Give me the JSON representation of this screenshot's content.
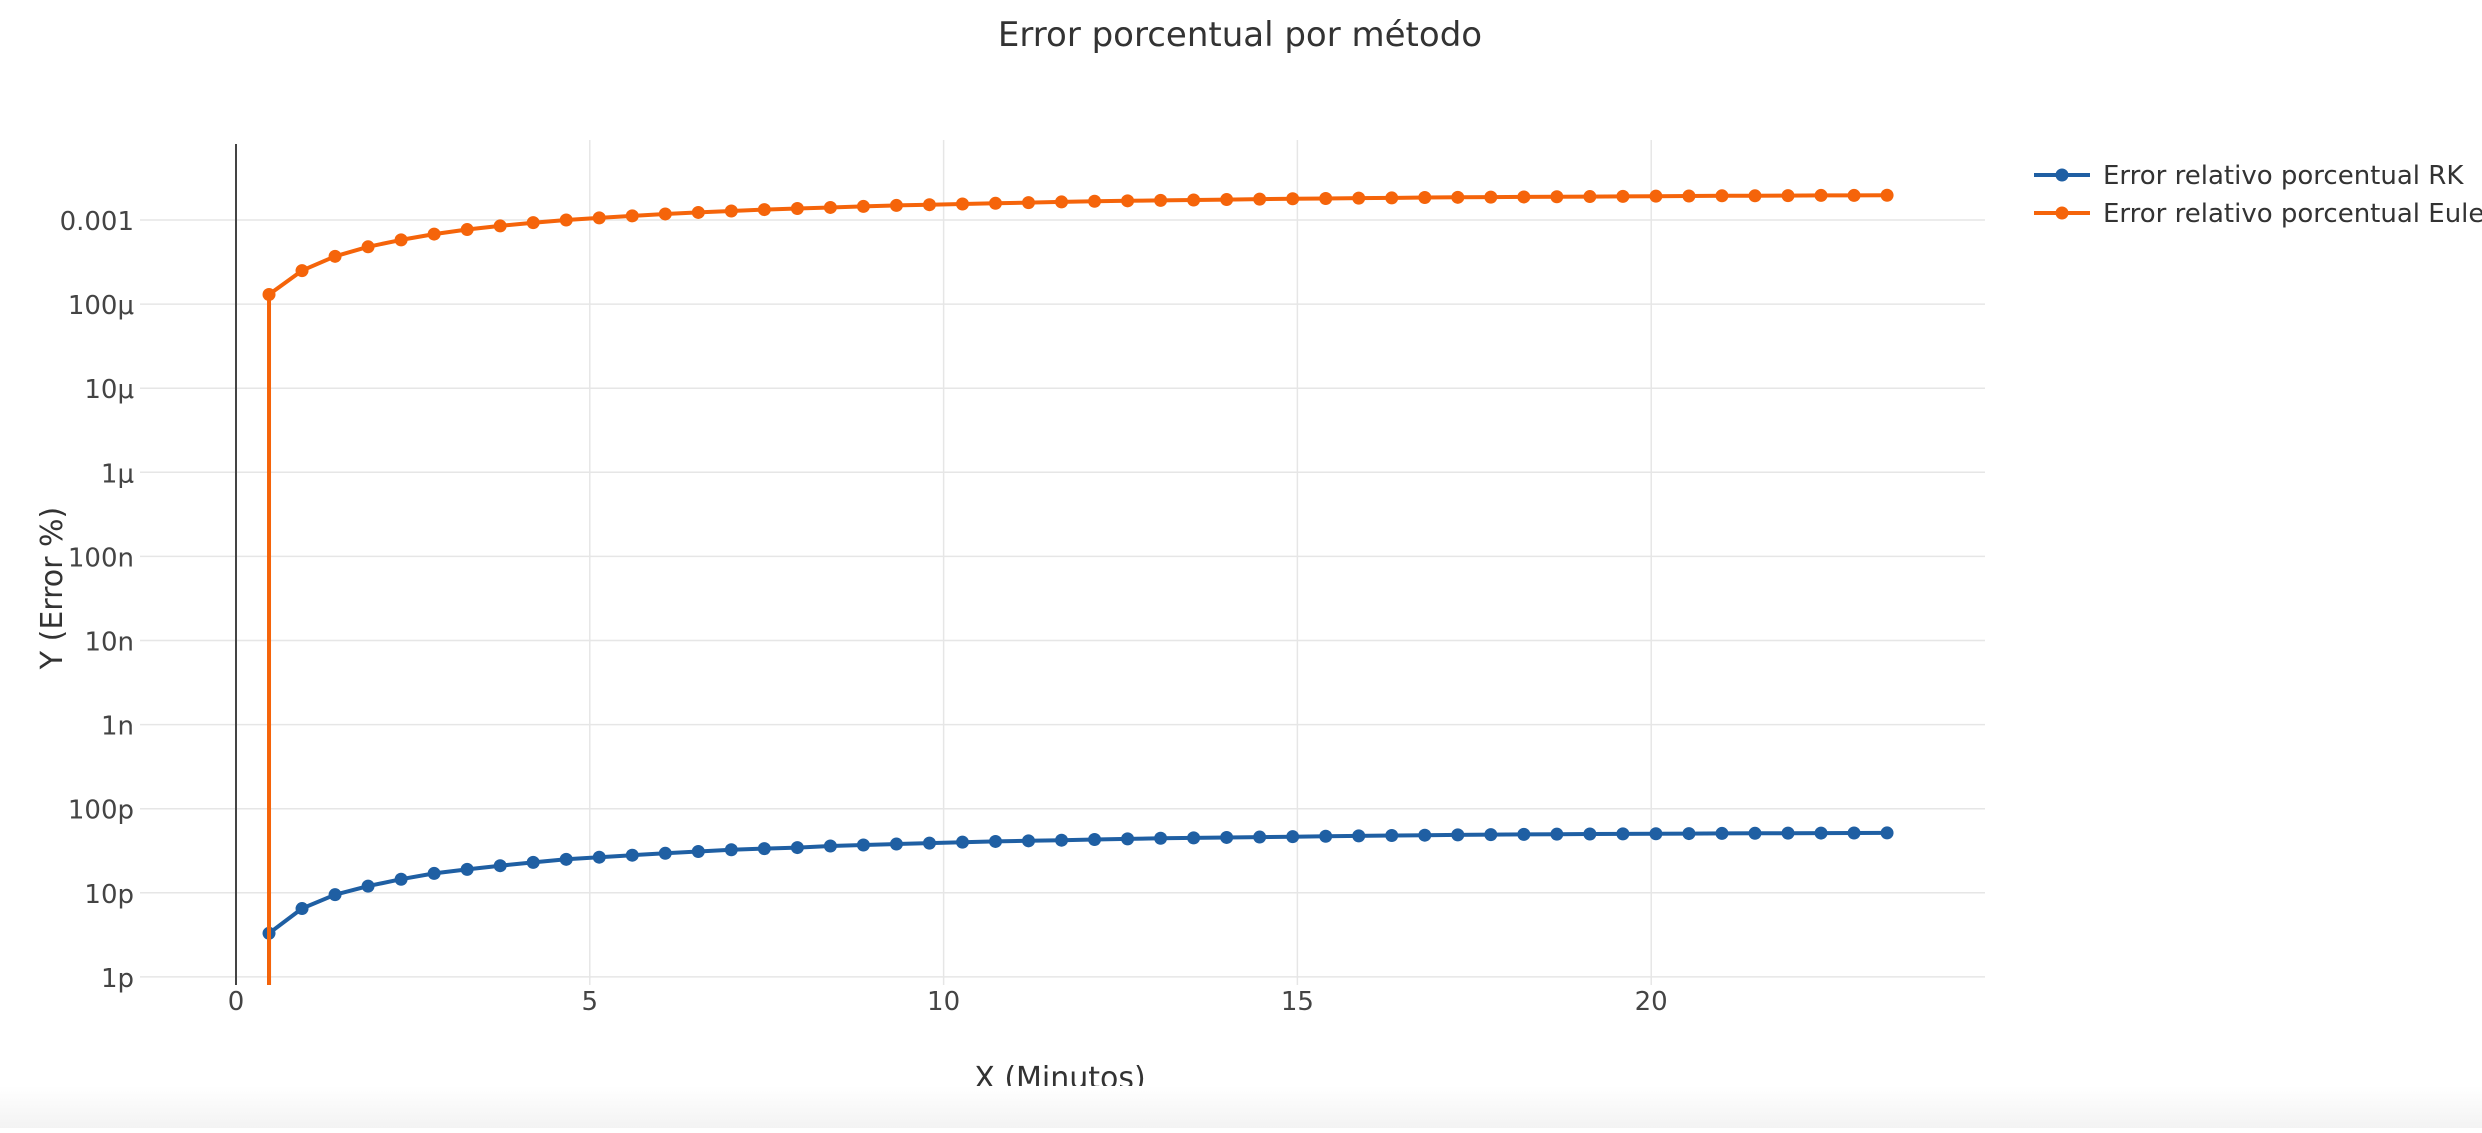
{
  "chart_data": {
    "type": "line",
    "title": "Error porcentual por método",
    "xlabel": "X (Minutos)",
    "ylabel": "Y (Error %)",
    "x_scale": "linear",
    "y_scale": "log",
    "xlim": [
      -1.0,
      24.8
    ],
    "ylim": [
      9e-13,
      0.008
    ],
    "x_ticks": [
      0,
      5,
      10,
      15,
      20
    ],
    "x_tick_labels": [
      "0",
      "5",
      "10",
      "15",
      "20"
    ],
    "y_ticks": [
      1e-12,
      1e-11,
      1e-10,
      1e-09,
      1e-08,
      1e-07,
      1e-06,
      1e-05,
      0.0001,
      0.001
    ],
    "y_tick_labels": [
      "1p",
      "10p",
      "100p",
      "1n",
      "10n",
      "100n",
      "1μ",
      "10μ",
      "100μ",
      "0.001"
    ],
    "grid": true,
    "legend_position": "top-right",
    "x": [
      0.46667,
      0.93333,
      1.4,
      1.86667,
      2.33333,
      2.8,
      3.26667,
      3.73333,
      4.2,
      4.66667,
      5.13333,
      5.6,
      6.06667,
      6.53333,
      7.0,
      7.46667,
      7.93333,
      8.4,
      8.86667,
      9.33333,
      9.8,
      10.26667,
      10.73333,
      11.2,
      11.66667,
      12.13333,
      12.6,
      13.06667,
      13.53333,
      14.0,
      14.46667,
      14.93333,
      15.4,
      15.86667,
      16.33333,
      16.8,
      17.26667,
      17.73333,
      18.2,
      18.66667,
      19.13333,
      19.6,
      20.06667,
      20.53333,
      21.0,
      21.46667,
      21.93333,
      22.4,
      22.86667,
      23.33333
    ],
    "series": [
      {
        "name": "Error relativo porcentual RK",
        "color": "#1f5fa3",
        "values": [
          3.3e-12,
          6.5e-12,
          9.5e-12,
          1.2e-11,
          1.45e-11,
          1.7e-11,
          1.9e-11,
          2.1e-11,
          2.3e-11,
          2.5e-11,
          2.65e-11,
          2.8e-11,
          2.95e-11,
          3.1e-11,
          3.25e-11,
          3.35e-11,
          3.45e-11,
          3.6e-11,
          3.7e-11,
          3.8e-11,
          3.9e-11,
          4e-11,
          4.08e-11,
          4.15e-11,
          4.22e-11,
          4.3e-11,
          4.38e-11,
          4.45e-11,
          4.5e-11,
          4.55e-11,
          4.6e-11,
          4.65e-11,
          4.7e-11,
          4.75e-11,
          4.8e-11,
          4.84e-11,
          4.88e-11,
          4.92e-11,
          4.95e-11,
          4.98e-11,
          5e-11,
          5.02e-11,
          5.04e-11,
          5.06e-11,
          5.08e-11,
          5.1e-11,
          5.12e-11,
          5.13e-11,
          5.14e-11,
          5.15e-11
        ]
      },
      {
        "name": "Error relativo porcentual Euler",
        "color": "#f5640a",
        "values": [
          0.00013,
          0.00025,
          0.00037,
          0.00048,
          0.00058,
          0.00068,
          0.00077,
          0.00085,
          0.00093,
          0.001,
          0.00106,
          0.00112,
          0.00118,
          0.00123,
          0.00128,
          0.00133,
          0.00137,
          0.00141,
          0.00145,
          0.00149,
          0.00152,
          0.00155,
          0.00158,
          0.00161,
          0.00164,
          0.00167,
          0.00169,
          0.00171,
          0.00173,
          0.00175,
          0.00177,
          0.00179,
          0.0018,
          0.00182,
          0.00183,
          0.00185,
          0.00186,
          0.00187,
          0.00188,
          0.00189,
          0.0019,
          0.00191,
          0.00192,
          0.00193,
          0.00194,
          0.00194,
          0.00195,
          0.00196,
          0.00196,
          0.00197
        ]
      }
    ]
  }
}
